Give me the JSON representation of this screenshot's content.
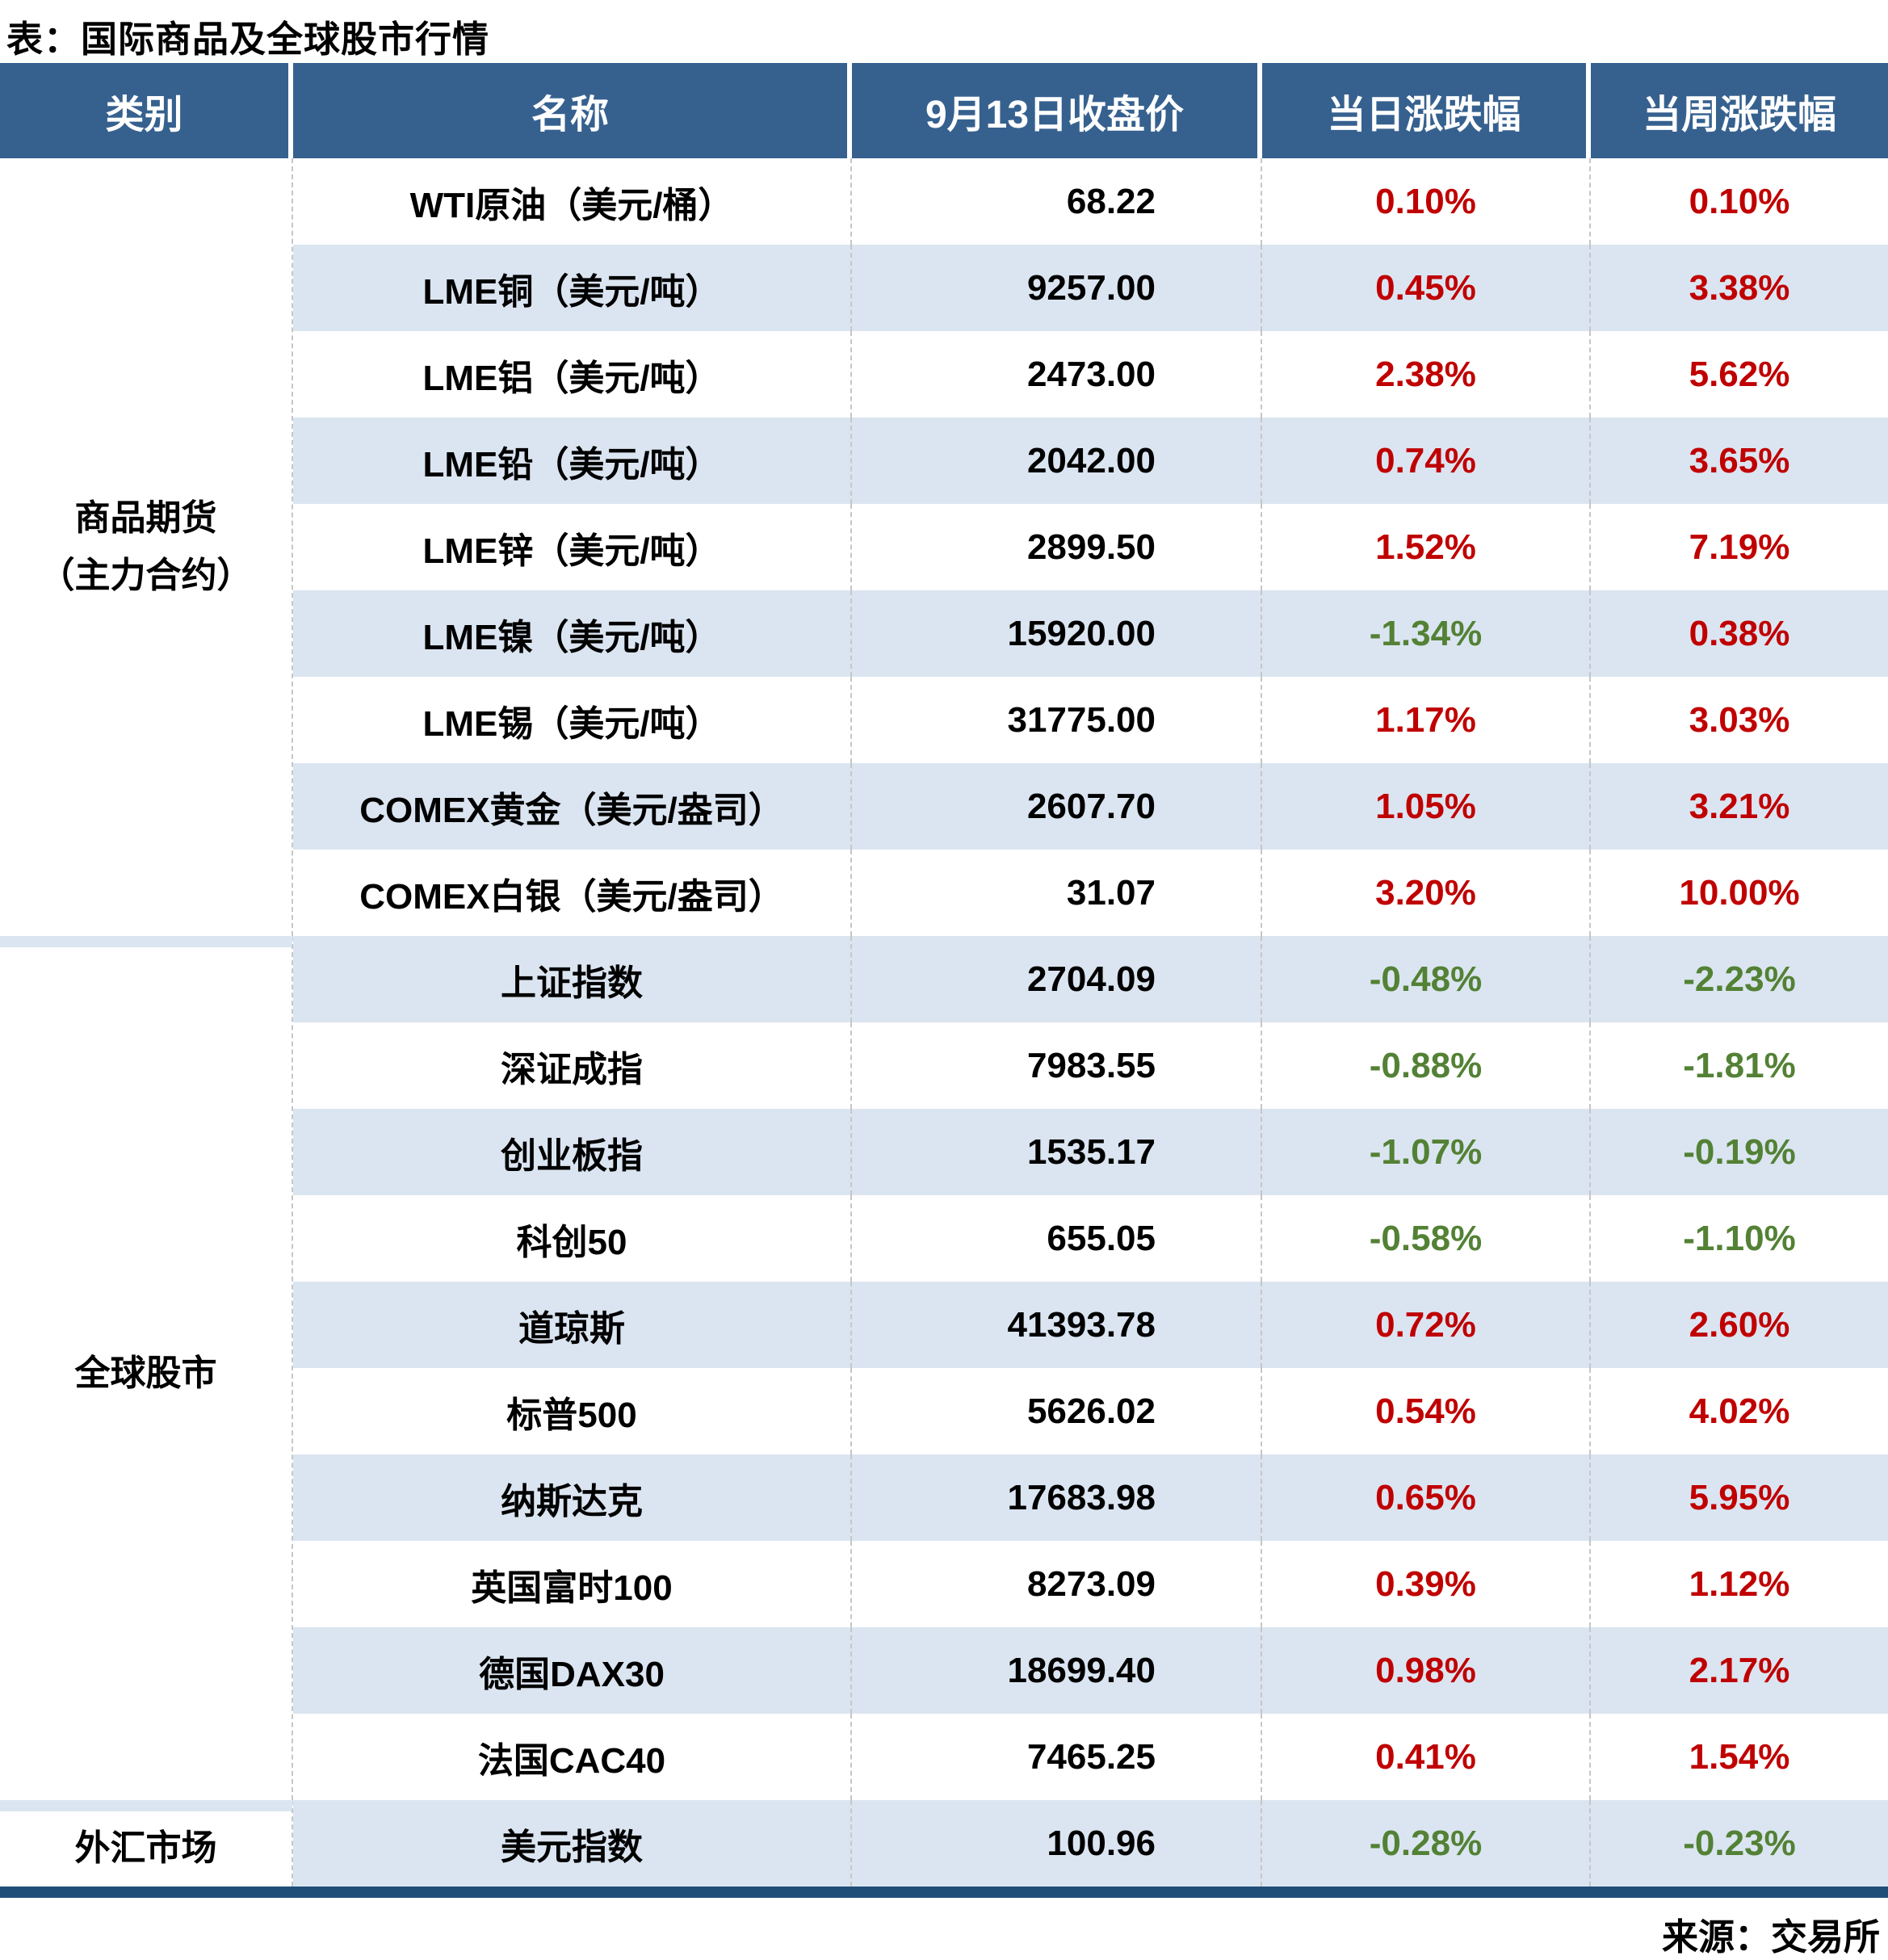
{
  "title": "表：国际商品及全球股市行情",
  "source": "来源：交易所",
  "colors": {
    "header_bg": "#36618F",
    "header_text": "#FFFFFF",
    "row_alt_bg": "#DBE5F1",
    "positive_red": "#C00000",
    "negative_green": "#538135",
    "bottom_border": "#1F4E79"
  },
  "table": {
    "headers": [
      "类别",
      "名称",
      "9月13日收盘价",
      "当日涨跌幅",
      "当周涨跌幅"
    ],
    "groups": [
      {
        "category": "商品期货\n（主力合约）",
        "rows": [
          {
            "name": "WTI原油（美元/桶）",
            "close": "68.22",
            "day": "0.10%",
            "week": "0.10%"
          },
          {
            "name": "LME铜（美元/吨）",
            "close": "9257.00",
            "day": "0.45%",
            "week": "3.38%"
          },
          {
            "name": "LME铝（美元/吨）",
            "close": "2473.00",
            "day": "2.38%",
            "week": "5.62%"
          },
          {
            "name": "LME铅（美元/吨）",
            "close": "2042.00",
            "day": "0.74%",
            "week": "3.65%"
          },
          {
            "name": "LME锌（美元/吨）",
            "close": "2899.50",
            "day": "1.52%",
            "week": "7.19%"
          },
          {
            "name": "LME镍（美元/吨）",
            "close": "15920.00",
            "day": "-1.34%",
            "week": "0.38%"
          },
          {
            "name": "LME锡（美元/吨）",
            "close": "31775.00",
            "day": "1.17%",
            "week": "3.03%"
          },
          {
            "name": "COMEX黄金（美元/盎司）",
            "close": "2607.70",
            "day": "1.05%",
            "week": "3.21%"
          },
          {
            "name": "COMEX白银（美元/盎司）",
            "close": "31.07",
            "day": "3.20%",
            "week": "10.00%"
          }
        ]
      },
      {
        "category": "全球股市",
        "rows": [
          {
            "name": "上证指数",
            "close": "2704.09",
            "day": "-0.48%",
            "week": "-2.23%"
          },
          {
            "name": "深证成指",
            "close": "7983.55",
            "day": "-0.88%",
            "week": "-1.81%"
          },
          {
            "name": "创业板指",
            "close": "1535.17",
            "day": "-1.07%",
            "week": "-0.19%"
          },
          {
            "name": "科创50",
            "close": "655.05",
            "day": "-0.58%",
            "week": "-1.10%"
          },
          {
            "name": "道琼斯",
            "close": "41393.78",
            "day": "0.72%",
            "week": "2.60%"
          },
          {
            "name": "标普500",
            "close": "5626.02",
            "day": "0.54%",
            "week": "4.02%"
          },
          {
            "name": "纳斯达克",
            "close": "17683.98",
            "day": "0.65%",
            "week": "5.95%"
          },
          {
            "name": "英国富时100",
            "close": "8273.09",
            "day": "0.39%",
            "week": "1.12%"
          },
          {
            "name": "德国DAX30",
            "close": "18699.40",
            "day": "0.98%",
            "week": "2.17%"
          },
          {
            "name": "法国CAC40",
            "close": "7465.25",
            "day": "0.41%",
            "week": "1.54%"
          }
        ]
      },
      {
        "category": "外汇市场",
        "rows": [
          {
            "name": "美元指数",
            "close": "100.96",
            "day": "-0.28%",
            "week": "-0.23%"
          }
        ]
      }
    ]
  }
}
